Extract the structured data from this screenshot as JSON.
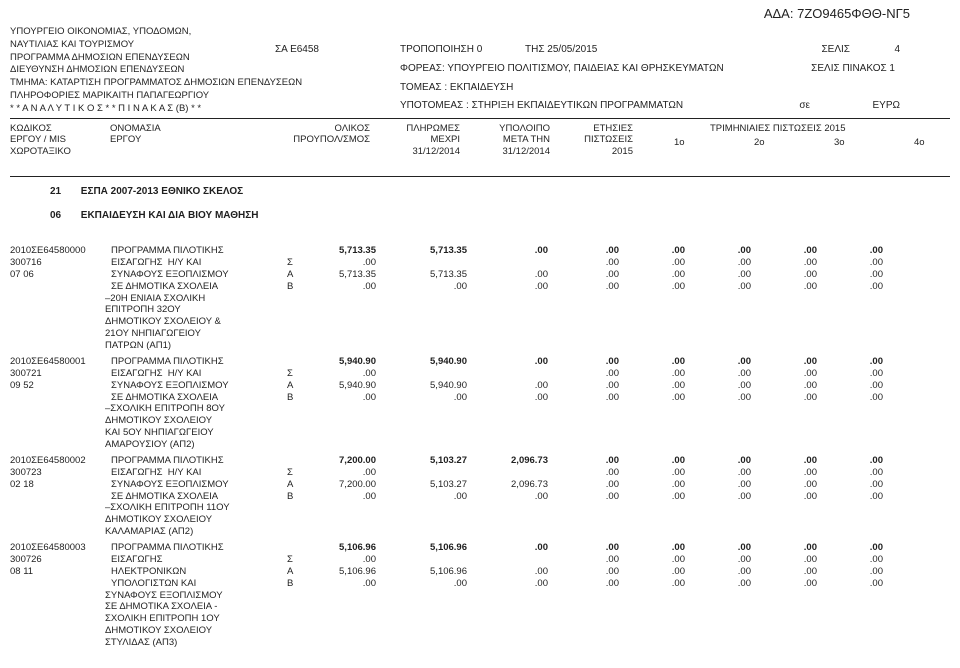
{
  "ada_label": "ΑΔΑ:",
  "ada_code": "7ΖΟ9465ΦΘΘ-ΝΓ5",
  "ministry": [
    "ΥΠΟΥΡΓΕΙΟ ΟΙΚΟΝΟΜΙΑΣ, ΥΠΟΔΟΜΩΝ,",
    "ΝΑΥΤΙΛΙΑΣ ΚΑΙ ΤΟΥΡΙΣΜΟΥ",
    "ΠΡΟΓΡΑΜΜΑ ΔΗΜΟΣΙΩΝ ΕΠΕΝΔΥΣΕΩΝ",
    "ΔΙΕΥΘΥΝΣΗ ΔΗΜΟΣΙΩΝ ΕΠΕΝΔΥΣΕΩΝ",
    "ΤΜΗΜΑ: ΚΑΤΑΡΤΙΣΗ ΠΡΟΓΡΑΜΜΑΤΟΣ ΔΗΜΟΣΙΩΝ ΕΠΕΝΔΥΣΕΩΝ",
    "ΠΛΗΡΟΦΟΡΙΕΣ ΜΑΡΙΚΑΙΤΗ ΠΑΠΑΓΕΩΡΓΙΟΥ",
    " * *  Α Ν Α Λ Υ Τ Ι Κ Ο Σ  * *  Π Ι Ν Α Κ Α Σ  (Β)  * *"
  ],
  "sa": "ΣΑ  Ε6458",
  "mod_label": "ΤΡΟΠΟΠΟΙΗΣΗ  0",
  "date_label": "ΤΗΣ  25/05/2015",
  "selis_label": "ΣΕΛΙΣ",
  "selis_n": "4",
  "selis_pinakos": "ΣΕΛΙΣ ΠΙΝΑΚΟΣ   1",
  "foreas": "ΦΟΡΕΑΣ: ΥΠΟΥΡΓΕΙΟ ΠΟΛΙΤΙΣΜΟΥ, ΠΑΙΔΕΙΑΣ ΚΑΙ ΘΡΗΣΚΕΥΜΑΤΩΝ",
  "tomeas": "ΤΟΜΕΑΣ : ΕΚΠΑΙΔΕΥΣΗ",
  "ypotomeas": "ΥΠΟΤΟΜΕΑΣ :   ΣΤΗΡΙΞΗ ΕΚΠΑΙΔΕΥΤΙΚΩΝ ΠΡΟΓΡΑΜΜΑΤΩΝ",
  "se": "σε",
  "euro": "ΕΥΡΩ",
  "headers": {
    "col1a": "ΚΩΔΙΚΟΣ",
    "col1b": "ΕΡΓΟΥ / MIS",
    "col1c": "ΧΩΡΟΤΑΞΙΚΟ",
    "col2a": "ΟΝΟΜΑΣΙΑ",
    "col2b": "ΕΡΓΟΥ",
    "col3a": "ΟΛΙΚΟΣ",
    "col3b": "ΠΡΟΥΠΟΛ/ΣΜΟΣ",
    "col4a": "ΠΛΗΡΩΜΕΣ",
    "col4b": "ΜΕΧΡΙ",
    "col4c": "31/12/2014",
    "col5a": "ΥΠΟΛΟΙΠΟ",
    "col5b": "ΜΕΤΑ ΤΗΝ",
    "col5c": "31/12/2014",
    "col6a": "ΕΤΗΣΙΕΣ",
    "col6b": "ΠΙΣΤΩΣΕΙΣ",
    "col6c": "2015",
    "col7": "ΤΡΙΜΗΝΙΑΙΕΣ ΠΙΣΤΩΣΕΙΣ  2015",
    "q1": "1o",
    "q2": "2o",
    "q3": "3o",
    "q4": "4o"
  },
  "section1_num": "21",
  "section1_text": "ΕΣΠΑ 2007-2013 ΕΘΝΙΚΟ ΣΚΕΛΟΣ",
  "section2_num": "06",
  "section2_text": "ΕΚΠΑΙΔΕΥΣΗ ΚΑΙ ΔΙΑ ΒΙΟΥ ΜΑΘΗΣΗ",
  "projects": [
    {
      "code": "2010ΣΕ64580000",
      "mis": "300716",
      "loc": "07 06",
      "descLines": [
        "ΠΡΟΓΡΑΜΜΑ ΠΙΛΟΤΙΚΗΣ",
        "ΕΙΣΑΓΩΓΗΣ  Η/Υ ΚΑΙ",
        "ΣΥΝΑΦΟΥΣ ΕΞΟΠΛΙΣΜΟΥ",
        "ΣΕ ΔΗΜΟΤΙΚΑ ΣΧΟΛΕΙΑ"
      ],
      "descMore": "–20Η ΕΝΙΑΙΑ ΣΧΟΛΙΚΗ\nΕΠΙΤΡΟΠΗ 32ΟΥ\nΔΗΜΟΤΙΚΟΥ ΣΧΟΛΕΙΟΥ &\n21ΟΥ ΝΗΠΙΑΓΩΓΕΙΟΥ\nΠΑΤΡΩΝ (ΑΠ1)",
      "lines": [
        {
          "sab": "",
          "c1": "5,713.35",
          "c2": "5,713.35",
          "c3": ".00",
          "c4": ".00",
          "c5": ".00",
          "c6": ".00",
          "c7": ".00",
          "c8": ".00",
          "bold": true
        },
        {
          "sab": "Σ",
          "c1": ".00",
          "c2": "",
          "c3": "",
          "c4": ".00",
          "c5": ".00",
          "c6": ".00",
          "c7": ".00",
          "c8": ".00"
        },
        {
          "sab": "Α",
          "c1": "5,713.35",
          "c2": "5,713.35",
          "c3": ".00",
          "c4": ".00",
          "c5": ".00",
          "c6": ".00",
          "c7": ".00",
          "c8": ".00"
        },
        {
          "sab": "Β",
          "c1": ".00",
          "c2": ".00",
          "c3": ".00",
          "c4": ".00",
          "c5": ".00",
          "c6": ".00",
          "c7": ".00",
          "c8": ".00"
        }
      ]
    },
    {
      "code": "2010ΣΕ64580001",
      "mis": "300721",
      "loc": "09 52",
      "descLines": [
        "ΠΡΟΓΡΑΜΜΑ ΠΙΛΟΤΙΚΗΣ",
        "ΕΙΣΑΓΩΓΗΣ  Η/Υ ΚΑΙ",
        "ΣΥΝΑΦΟΥΣ ΕΞΟΠΛΙΣΜΟΥ",
        "ΣΕ ΔΗΜΟΤΙΚΑ ΣΧΟΛΕΙΑ"
      ],
      "descMore": "–ΣΧΟΛΙΚΗ ΕΠΙΤΡΟΠΗ 8ΟΥ\nΔΗΜΟΤΙΚΟΥ ΣΧΟΛΕΙΟΥ\nΚΑΙ 5ΟΥ ΝΗΠΙΑΓΩΓΕΙΟΥ\nΑΜΑΡΟΥΣΙΟΥ (ΑΠ2)",
      "lines": [
        {
          "sab": "",
          "c1": "5,940.90",
          "c2": "5,940.90",
          "c3": ".00",
          "c4": ".00",
          "c5": ".00",
          "c6": ".00",
          "c7": ".00",
          "c8": ".00",
          "bold": true
        },
        {
          "sab": "Σ",
          "c1": ".00",
          "c2": "",
          "c3": "",
          "c4": ".00",
          "c5": ".00",
          "c6": ".00",
          "c7": ".00",
          "c8": ".00"
        },
        {
          "sab": "Α",
          "c1": "5,940.90",
          "c2": "5,940.90",
          "c3": ".00",
          "c4": ".00",
          "c5": ".00",
          "c6": ".00",
          "c7": ".00",
          "c8": ".00"
        },
        {
          "sab": "Β",
          "c1": ".00",
          "c2": ".00",
          "c3": ".00",
          "c4": ".00",
          "c5": ".00",
          "c6": ".00",
          "c7": ".00",
          "c8": ".00"
        }
      ]
    },
    {
      "code": "2010ΣΕ64580002",
      "mis": "300723",
      "loc": "02 18",
      "descLines": [
        "ΠΡΟΓΡΑΜΜΑ ΠΙΛΟΤΙΚΗΣ",
        "ΕΙΣΑΓΩΓΗΣ  Η/Υ ΚΑΙ",
        "ΣΥΝΑΦΟΥΣ ΕΞΟΠΛΙΣΜΟΥ",
        "ΣΕ ΔΗΜΟΤΙΚΑ ΣΧΟΛΕΙΑ"
      ],
      "descMore": "–ΣΧΟΛΙΚΗ ΕΠΙΤΡΟΠΗ 11ΟΥ\nΔΗΜΟΤΙΚΟΥ ΣΧΟΛΕΙΟΥ\nΚΑΛΑΜΑΡΙΑΣ (ΑΠ2)",
      "lines": [
        {
          "sab": "",
          "c1": "7,200.00",
          "c2": "5,103.27",
          "c3": "2,096.73",
          "c4": ".00",
          "c5": ".00",
          "c6": ".00",
          "c7": ".00",
          "c8": ".00",
          "bold": true
        },
        {
          "sab": "Σ",
          "c1": ".00",
          "c2": "",
          "c3": "",
          "c4": ".00",
          "c5": ".00",
          "c6": ".00",
          "c7": ".00",
          "c8": ".00"
        },
        {
          "sab": "Α",
          "c1": "7,200.00",
          "c2": "5,103.27",
          "c3": "2,096.73",
          "c4": ".00",
          "c5": ".00",
          "c6": ".00",
          "c7": ".00",
          "c8": ".00"
        },
        {
          "sab": "Β",
          "c1": ".00",
          "c2": ".00",
          "c3": ".00",
          "c4": ".00",
          "c5": ".00",
          "c6": ".00",
          "c7": ".00",
          "c8": ".00"
        }
      ]
    },
    {
      "code": "2010ΣΕ64580003",
      "mis": "300726",
      "loc": "08 11",
      "descLines": [
        "ΠΡΟΓΡΑΜΜΑ ΠΙΛΟΤΙΚΗΣ",
        "ΕΙΣΑΓΩΓΗΣ",
        "ΗΛΕΚΤΡΟΝΙΚΩΝ",
        "ΥΠΟΛΟΓΙΣΤΩΝ ΚΑΙ"
      ],
      "descMore": "ΣΥΝΑΦΟΥΣ ΕΞΟΠΛΙΣΜΟΥ\nΣΕ ΔΗΜΟΤΙΚΑ ΣΧΟΛΕΙΑ -\nΣΧΟΛΙΚΗ ΕΠΙΤΡΟΠΗ 1ΟΥ\nΔΗΜΟΤΙΚΟΥ ΣΧΟΛΕΙΟΥ\nΣΤΥΛΙΔΑΣ (ΑΠ3)",
      "lines": [
        {
          "sab": "",
          "c1": "5,106.96",
          "c2": "5,106.96",
          "c3": ".00",
          "c4": ".00",
          "c5": ".00",
          "c6": ".00",
          "c7": ".00",
          "c8": ".00",
          "bold": true
        },
        {
          "sab": "Σ",
          "c1": ".00",
          "c2": "",
          "c3": "",
          "c4": ".00",
          "c5": ".00",
          "c6": ".00",
          "c7": ".00",
          "c8": ".00"
        },
        {
          "sab": "Α",
          "c1": "5,106.96",
          "c2": "5,106.96",
          "c3": ".00",
          "c4": ".00",
          "c5": ".00",
          "c6": ".00",
          "c7": ".00",
          "c8": ".00"
        },
        {
          "sab": "Β",
          "c1": ".00",
          "c2": ".00",
          "c3": ".00",
          "c4": ".00",
          "c5": ".00",
          "c6": ".00",
          "c7": ".00",
          "c8": ".00"
        }
      ]
    }
  ]
}
